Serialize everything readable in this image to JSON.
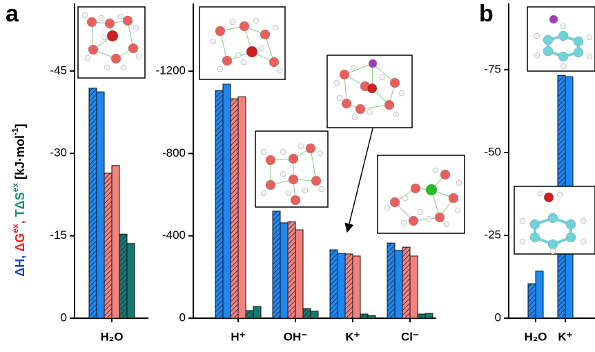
{
  "chart_data": [
    {
      "type": "bar",
      "panel": "a",
      "y_label": [
        {
          "text": "ΔH, ",
          "color": "#1c3fcf"
        },
        {
          "text": "ΔG",
          "color": "#e8262b"
        },
        {
          "text": "ex",
          "color": "#e8262b",
          "sup": true
        },
        {
          "text": ", ",
          "color": "#e8262b"
        },
        {
          "text": "TΔS",
          "color": "#1a8a7e"
        },
        {
          "text": "ex",
          "color": "#1a8a7e",
          "sup": true
        },
        {
          "text": " [kJ·mol",
          "color": "#000000"
        },
        {
          "text": "-1",
          "color": "#000000",
          "sup": true
        },
        {
          "text": "]",
          "color": "#000000"
        }
      ],
      "categories": [
        "H₂O"
      ],
      "series": [
        {
          "color": "#1e88f0",
          "hatched": true,
          "values": [
            -41.9
          ]
        },
        {
          "color": "#1e88f0",
          "hatched": false,
          "values": [
            -41.2
          ]
        },
        {
          "color": "#f4827c",
          "hatched": true,
          "values": [
            -26.4
          ]
        },
        {
          "color": "#f4827c",
          "hatched": false,
          "values": [
            -27.8
          ]
        },
        {
          "color": "#16796d",
          "hatched": true,
          "values": [
            -15.3
          ]
        },
        {
          "color": "#16796d",
          "hatched": false,
          "values": [
            -13.6
          ]
        }
      ],
      "ylim": [
        0,
        -57.3
      ],
      "yticks": [
        0,
        -15,
        -30,
        -45
      ]
    },
    {
      "type": "bar",
      "categories": [
        "H⁺",
        "OH⁻",
        "K⁺",
        "Cl⁻"
      ],
      "series": [
        {
          "color": "#1e88f0",
          "hatched": true,
          "values": [
            -1106,
            -520,
            -332,
            -365
          ]
        },
        {
          "color": "#1e88f0",
          "hatched": false,
          "values": [
            -1137,
            -463,
            -315,
            -329
          ]
        },
        {
          "color": "#f4827c",
          "hatched": true,
          "values": [
            -1066,
            -469,
            -312,
            -345
          ]
        },
        {
          "color": "#f4827c",
          "hatched": false,
          "values": [
            -1076,
            -429,
            -302,
            -302
          ]
        },
        {
          "color": "#16796d",
          "hatched": true,
          "values": [
            -37,
            -47,
            -20,
            -20
          ]
        },
        {
          "color": "#16796d",
          "hatched": false,
          "values": [
            -57,
            -34,
            -13,
            -23
          ]
        }
      ],
      "ylim": [
        0,
        -1529
      ],
      "yticks": [
        0,
        -400,
        -800,
        -1200
      ]
    },
    {
      "type": "bar",
      "panel": "b",
      "categories": [
        "H₂O",
        "K⁺"
      ],
      "series": [
        {
          "color": "#1e88f0",
          "hatched": true,
          "values": [
            -10.4,
            -73.3
          ]
        },
        {
          "color": "#1e88f0",
          "hatched": false,
          "values": [
            -14.2,
            -72.9
          ]
        }
      ],
      "ylim": [
        0,
        -95
      ],
      "yticks": [
        0,
        -25,
        -50,
        -75
      ]
    }
  ]
}
